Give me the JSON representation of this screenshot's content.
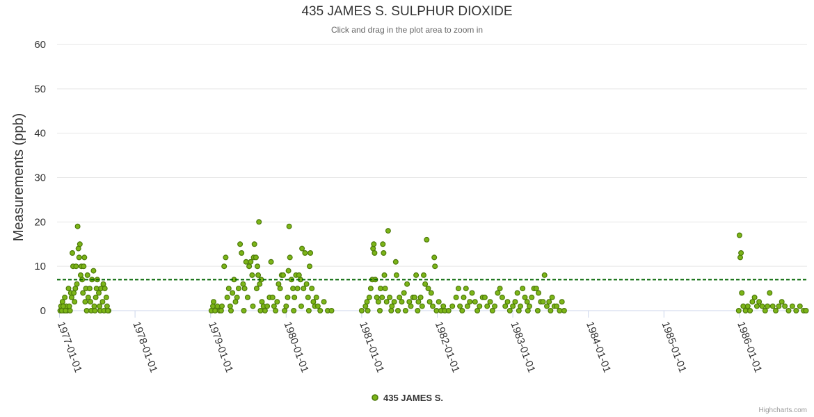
{
  "chart_data": {
    "type": "scatter",
    "title": "435 JAMES S. SULPHUR DIOXIDE",
    "subtitle": "Click and drag in the plot area to zoom in",
    "ylabel": "Measurements (ppb)",
    "xlabel": "",
    "ylim": [
      0,
      60
    ],
    "yticks": [
      0,
      10,
      20,
      30,
      40,
      50,
      60
    ],
    "xlim": [
      1976.92,
      1987.0
    ],
    "xticks": [
      {
        "value": 1977,
        "label": "1977-01-01"
      },
      {
        "value": 1978,
        "label": "1978-01-01"
      },
      {
        "value": 1979,
        "label": "1979-01-01"
      },
      {
        "value": 1980,
        "label": "1980-01-01"
      },
      {
        "value": 1981,
        "label": "1981-01-01"
      },
      {
        "value": 1982,
        "label": "1982-01-01"
      },
      {
        "value": 1983,
        "label": "1983-01-01"
      },
      {
        "value": 1984,
        "label": "1984-01-01"
      },
      {
        "value": 1985,
        "label": "1985-01-01"
      },
      {
        "value": 1986,
        "label": "1986-01-01"
      }
    ],
    "threshold": {
      "value": 7,
      "style": "dashed",
      "color": "#006400"
    },
    "grid": true,
    "legend": "bottom-center",
    "series": [
      {
        "name": "435 JAMES S.",
        "color": "#7cb518",
        "points": [
          [
            1977.01,
            0
          ],
          [
            1977.02,
            1
          ],
          [
            1977.04,
            2
          ],
          [
            1977.06,
            0
          ],
          [
            1977.07,
            3
          ],
          [
            1977.09,
            1
          ],
          [
            1977.1,
            0
          ],
          [
            1977.12,
            5
          ],
          [
            1977.14,
            0
          ],
          [
            1977.15,
            4
          ],
          [
            1977.17,
            13
          ],
          [
            1977.18,
            10
          ],
          [
            1977.2,
            2
          ],
          [
            1977.21,
            5
          ],
          [
            1977.22,
            10
          ],
          [
            1977.24,
            19
          ],
          [
            1977.25,
            14
          ],
          [
            1977.26,
            12
          ],
          [
            1977.27,
            15
          ],
          [
            1977.28,
            8
          ],
          [
            1977.29,
            10
          ],
          [
            1977.3,
            7
          ],
          [
            1977.31,
            4
          ],
          [
            1977.32,
            10
          ],
          [
            1977.33,
            12
          ],
          [
            1977.34,
            2
          ],
          [
            1977.35,
            5
          ],
          [
            1977.37,
            8
          ],
          [
            1977.38,
            3
          ],
          [
            1977.4,
            5
          ],
          [
            1977.41,
            2
          ],
          [
            1977.43,
            7
          ],
          [
            1977.45,
            9
          ],
          [
            1977.46,
            1
          ],
          [
            1977.48,
            3
          ],
          [
            1977.49,
            5
          ],
          [
            1977.5,
            7
          ],
          [
            1977.52,
            4
          ],
          [
            1977.53,
            1
          ],
          [
            1977.55,
            5
          ],
          [
            1977.57,
            2
          ],
          [
            1977.58,
            6
          ],
          [
            1977.6,
            5
          ],
          [
            1977.62,
            3
          ],
          [
            1977.63,
            1
          ],
          [
            1977.65,
            0
          ],
          [
            1977.03,
            0
          ],
          [
            1977.05,
            1
          ],
          [
            1977.08,
            0
          ],
          [
            1977.13,
            1
          ],
          [
            1977.16,
            3
          ],
          [
            1977.19,
            4
          ],
          [
            1977.23,
            6
          ],
          [
            1977.36,
            0
          ],
          [
            1977.42,
            0
          ],
          [
            1977.47,
            0
          ],
          [
            1977.54,
            0
          ],
          [
            1977.59,
            0
          ],
          [
            1977.64,
            0
          ],
          [
            1979.01,
            0
          ],
          [
            1979.03,
            1
          ],
          [
            1979.04,
            2
          ],
          [
            1979.06,
            0
          ],
          [
            1979.09,
            1
          ],
          [
            1979.12,
            0
          ],
          [
            1979.15,
            1
          ],
          [
            1979.18,
            10
          ],
          [
            1979.2,
            12
          ],
          [
            1979.22,
            3
          ],
          [
            1979.24,
            5
          ],
          [
            1979.26,
            1
          ],
          [
            1979.29,
            4
          ],
          [
            1979.31,
            7
          ],
          [
            1979.33,
            2
          ],
          [
            1979.35,
            3
          ],
          [
            1979.37,
            5
          ],
          [
            1979.39,
            15
          ],
          [
            1979.41,
            13
          ],
          [
            1979.43,
            6
          ],
          [
            1979.45,
            5
          ],
          [
            1979.47,
            11
          ],
          [
            1979.49,
            3
          ],
          [
            1979.51,
            10
          ],
          [
            1979.53,
            11
          ],
          [
            1979.55,
            8
          ],
          [
            1979.57,
            12
          ],
          [
            1979.58,
            15
          ],
          [
            1979.6,
            12
          ],
          [
            1979.61,
            5
          ],
          [
            1979.62,
            10
          ],
          [
            1979.63,
            8
          ],
          [
            1979.64,
            20
          ],
          [
            1979.65,
            6
          ],
          [
            1979.67,
            7
          ],
          [
            1979.68,
            2
          ],
          [
            1979.7,
            1
          ],
          [
            1979.72,
            0
          ],
          [
            1979.75,
            1
          ],
          [
            1979.78,
            3
          ],
          [
            1979.8,
            11
          ],
          [
            1979.82,
            3
          ],
          [
            1979.84,
            1
          ],
          [
            1979.86,
            0
          ],
          [
            1979.88,
            2
          ],
          [
            1979.9,
            6
          ],
          [
            1979.92,
            5
          ],
          [
            1979.94,
            8
          ],
          [
            1979.96,
            8
          ],
          [
            1979.98,
            0
          ],
          [
            1979.14,
            0
          ],
          [
            1979.27,
            0
          ],
          [
            1979.44,
            0
          ],
          [
            1979.56,
            1
          ],
          [
            1979.66,
            0
          ],
          [
            1980.0,
            1
          ],
          [
            1980.02,
            3
          ],
          [
            1980.03,
            9
          ],
          [
            1980.04,
            19
          ],
          [
            1980.05,
            12
          ],
          [
            1980.07,
            7
          ],
          [
            1980.09,
            5
          ],
          [
            1980.11,
            3
          ],
          [
            1980.13,
            8
          ],
          [
            1980.15,
            5
          ],
          [
            1980.17,
            8
          ],
          [
            1980.19,
            7
          ],
          [
            1980.21,
            14
          ],
          [
            1980.23,
            5
          ],
          [
            1980.25,
            13
          ],
          [
            1980.27,
            6
          ],
          [
            1980.29,
            3
          ],
          [
            1980.31,
            10
          ],
          [
            1980.32,
            13
          ],
          [
            1980.34,
            5
          ],
          [
            1980.36,
            2
          ],
          [
            1980.38,
            1
          ],
          [
            1980.4,
            3
          ],
          [
            1980.42,
            1
          ],
          [
            1980.45,
            0
          ],
          [
            1980.5,
            2
          ],
          [
            1980.55,
            0
          ],
          [
            1980.6,
            0
          ],
          [
            1980.1,
            0
          ],
          [
            1980.2,
            1
          ],
          [
            1980.3,
            0
          ],
          [
            1981.0,
            0
          ],
          [
            1981.05,
            1
          ],
          [
            1981.07,
            2
          ],
          [
            1981.1,
            3
          ],
          [
            1981.12,
            5
          ],
          [
            1981.14,
            7
          ],
          [
            1981.15,
            14
          ],
          [
            1981.16,
            15
          ],
          [
            1981.17,
            13
          ],
          [
            1981.18,
            7
          ],
          [
            1981.2,
            3
          ],
          [
            1981.22,
            2
          ],
          [
            1981.25,
            5
          ],
          [
            1981.27,
            3
          ],
          [
            1981.28,
            15
          ],
          [
            1981.29,
            13
          ],
          [
            1981.3,
            8
          ],
          [
            1981.31,
            5
          ],
          [
            1981.33,
            2
          ],
          [
            1981.35,
            18
          ],
          [
            1981.37,
            3
          ],
          [
            1981.4,
            1
          ],
          [
            1981.43,
            2
          ],
          [
            1981.45,
            11
          ],
          [
            1981.46,
            8
          ],
          [
            1981.48,
            0
          ],
          [
            1981.5,
            3
          ],
          [
            1981.53,
            2
          ],
          [
            1981.56,
            4
          ],
          [
            1981.6,
            6
          ],
          [
            1981.63,
            2
          ],
          [
            1981.65,
            1
          ],
          [
            1981.68,
            3
          ],
          [
            1981.7,
            3
          ],
          [
            1981.72,
            8
          ],
          [
            1981.75,
            2
          ],
          [
            1981.78,
            3
          ],
          [
            1981.8,
            1
          ],
          [
            1981.82,
            8
          ],
          [
            1981.84,
            6
          ],
          [
            1981.86,
            16
          ],
          [
            1981.88,
            5
          ],
          [
            1981.9,
            2
          ],
          [
            1981.92,
            4
          ],
          [
            1981.94,
            1
          ],
          [
            1981.96,
            12
          ],
          [
            1981.97,
            10
          ],
          [
            1981.99,
            0
          ],
          [
            1981.08,
            0
          ],
          [
            1981.24,
            0
          ],
          [
            1981.39,
            0
          ],
          [
            1981.58,
            0
          ],
          [
            1981.74,
            0
          ],
          [
            1982.02,
            2
          ],
          [
            1982.05,
            0
          ],
          [
            1982.08,
            1
          ],
          [
            1982.1,
            0
          ],
          [
            1982.15,
            0
          ],
          [
            1982.2,
            1
          ],
          [
            1982.25,
            3
          ],
          [
            1982.28,
            5
          ],
          [
            1982.3,
            1
          ],
          [
            1982.33,
            0
          ],
          [
            1982.35,
            3
          ],
          [
            1982.38,
            5
          ],
          [
            1982.4,
            1
          ],
          [
            1982.43,
            2
          ],
          [
            1982.46,
            4
          ],
          [
            1982.5,
            2
          ],
          [
            1982.53,
            0
          ],
          [
            1982.56,
            1
          ],
          [
            1982.6,
            3
          ],
          [
            1982.63,
            3
          ],
          [
            1982.66,
            1
          ],
          [
            1982.7,
            2
          ],
          [
            1982.73,
            0
          ],
          [
            1982.76,
            1
          ],
          [
            1982.8,
            4
          ],
          [
            1982.83,
            5
          ],
          [
            1982.86,
            3
          ],
          [
            1982.9,
            1
          ],
          [
            1982.93,
            2
          ],
          [
            1982.96,
            0
          ],
          [
            1983.0,
            1
          ],
          [
            1983.03,
            2
          ],
          [
            1983.06,
            4
          ],
          [
            1983.1,
            1
          ],
          [
            1983.13,
            5
          ],
          [
            1983.16,
            3
          ],
          [
            1983.19,
            2
          ],
          [
            1983.22,
            1
          ],
          [
            1983.25,
            3
          ],
          [
            1983.28,
            5
          ],
          [
            1983.31,
            5
          ],
          [
            1983.34,
            4
          ],
          [
            1983.37,
            2
          ],
          [
            1983.4,
            2
          ],
          [
            1983.42,
            8
          ],
          [
            1983.45,
            1
          ],
          [
            1983.48,
            2
          ],
          [
            1983.52,
            3
          ],
          [
            1983.55,
            1
          ],
          [
            1983.58,
            1
          ],
          [
            1983.62,
            0
          ],
          [
            1983.65,
            2
          ],
          [
            1983.68,
            0
          ],
          [
            1983.08,
            0
          ],
          [
            1983.2,
            0
          ],
          [
            1983.33,
            0
          ],
          [
            1983.5,
            0
          ],
          [
            1985.99,
            0
          ],
          [
            1986.0,
            17
          ],
          [
            1986.01,
            12
          ],
          [
            1986.02,
            13
          ],
          [
            1986.03,
            4
          ],
          [
            1986.05,
            1
          ],
          [
            1986.08,
            0
          ],
          [
            1986.11,
            1
          ],
          [
            1986.14,
            0
          ],
          [
            1986.17,
            2
          ],
          [
            1986.2,
            3
          ],
          [
            1986.23,
            1
          ],
          [
            1986.26,
            2
          ],
          [
            1986.3,
            1
          ],
          [
            1986.34,
            0
          ],
          [
            1986.37,
            1
          ],
          [
            1986.4,
            4
          ],
          [
            1986.44,
            1
          ],
          [
            1986.48,
            0
          ],
          [
            1986.52,
            1
          ],
          [
            1986.56,
            2
          ],
          [
            1986.6,
            1
          ],
          [
            1986.65,
            0
          ],
          [
            1986.7,
            1
          ],
          [
            1986.75,
            0
          ],
          [
            1986.8,
            1
          ],
          [
            1986.85,
            0
          ],
          [
            1986.88,
            0
          ]
        ]
      }
    ]
  },
  "credits": "Highcharts.com"
}
